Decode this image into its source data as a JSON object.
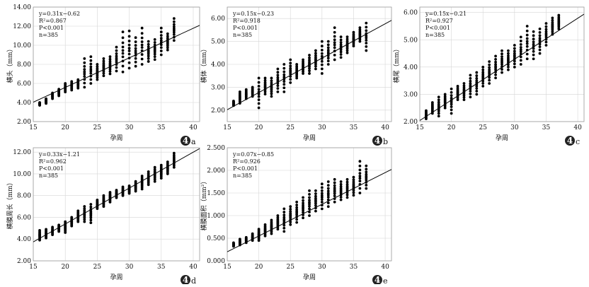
{
  "chart_data": [
    {
      "id": "a",
      "type": "scatter",
      "panel_label": "4",
      "panel_letter": "a",
      "xlabel": "孕周",
      "ylabel": "横头（mm）",
      "xlim": [
        15,
        41
      ],
      "ylim": [
        2.0,
        14.0
      ],
      "xticks": [
        "15",
        "20",
        "25",
        "30",
        "35",
        "40"
      ],
      "yticks": [
        "2.00",
        "4.00",
        "6.00",
        "8.00",
        "10.00",
        "12.00",
        "14.00"
      ],
      "stats": [
        "y=0.31x−0.62",
        "R²=0.867",
        "P<0.001",
        "n=385"
      ],
      "fit": {
        "slope": 0.31,
        "intercept": -0.62
      },
      "point_ranges": [
        [
          16,
          3.7,
          4.0
        ],
        [
          17,
          3.9,
          4.4
        ],
        [
          18,
          4.4,
          5.0
        ],
        [
          19,
          4.7,
          5.4
        ],
        [
          20,
          5.1,
          6.0
        ],
        [
          21,
          5.3,
          6.2
        ],
        [
          22,
          5.5,
          6.4
        ],
        [
          23,
          5.6,
          8.6
        ],
        [
          24,
          6.0,
          8.8
        ],
        [
          25,
          6.4,
          8.0
        ],
        [
          26,
          6.8,
          8.6
        ],
        [
          27,
          7.0,
          8.8
        ],
        [
          28,
          7.3,
          9.8
        ],
        [
          29,
          7.2,
          11.4
        ],
        [
          30,
          7.6,
          11.5
        ],
        [
          31,
          7.8,
          10.8
        ],
        [
          32,
          8.0,
          11.8
        ],
        [
          33,
          8.3,
          10.4
        ],
        [
          34,
          8.5,
          10.6
        ],
        [
          35,
          9.0,
          11.8
        ],
        [
          36,
          9.5,
          11.2
        ],
        [
          37,
          10.5,
          12.8
        ]
      ]
    },
    {
      "id": "b",
      "type": "scatter",
      "panel_label": "4",
      "panel_letter": "b",
      "xlabel": "孕周",
      "ylabel": "横体（mm）",
      "xlim": [
        15,
        41
      ],
      "ylim": [
        1.5,
        6.5
      ],
      "xticks": [
        "15",
        "20",
        "25",
        "30",
        "35",
        "40"
      ],
      "yticks": [
        "2.00",
        "3.00",
        "4.00",
        "5.00",
        "6.00"
      ],
      "stats": [
        "y=0.15x−0.23",
        "R²=0.918",
        "P<0.001",
        "n=385"
      ],
      "fit": {
        "slope": 0.15,
        "intercept": -0.23
      },
      "point_ranges": [
        [
          16,
          2.2,
          2.4
        ],
        [
          17,
          2.3,
          2.8
        ],
        [
          18,
          2.5,
          2.9
        ],
        [
          19,
          2.6,
          3.0
        ],
        [
          20,
          2.1,
          3.4
        ],
        [
          21,
          2.7,
          3.4
        ],
        [
          22,
          2.6,
          3.4
        ],
        [
          23,
          2.8,
          3.8
        ],
        [
          24,
          2.8,
          4.0
        ],
        [
          25,
          3.2,
          4.2
        ],
        [
          26,
          3.4,
          4.0
        ],
        [
          27,
          3.6,
          4.2
        ],
        [
          28,
          3.6,
          4.4
        ],
        [
          29,
          3.8,
          4.6
        ],
        [
          30,
          3.6,
          5.0
        ],
        [
          31,
          4.0,
          5.0
        ],
        [
          32,
          4.2,
          5.6
        ],
        [
          33,
          4.3,
          5.2
        ],
        [
          34,
          4.5,
          5.2
        ],
        [
          35,
          4.8,
          5.4
        ],
        [
          36,
          5.0,
          5.6
        ],
        [
          37,
          4.6,
          5.8
        ]
      ]
    },
    {
      "id": "c",
      "type": "scatter",
      "panel_label": "4",
      "panel_letter": "c",
      "xlabel": "孕周",
      "ylabel": "横尾（mm）",
      "xlim": [
        15,
        41
      ],
      "ylim": [
        2.0,
        6.2
      ],
      "xticks": [
        "15",
        "20",
        "25",
        "30",
        "35",
        "40"
      ],
      "yticks": [
        "2.00",
        "3.00",
        "4.00",
        "5.00",
        "6.00"
      ],
      "stats": [
        "y=0.15x−0.21",
        "R²=0.927",
        "P<0.001",
        "n=385"
      ],
      "fit": {
        "slope": 0.15,
        "intercept": -0.21
      },
      "point_ranges": [
        [
          16,
          2.1,
          2.4
        ],
        [
          17,
          2.3,
          2.7
        ],
        [
          18,
          2.2,
          2.9
        ],
        [
          19,
          2.5,
          3.0
        ],
        [
          20,
          2.3,
          3.2
        ],
        [
          21,
          2.8,
          3.3
        ],
        [
          22,
          2.8,
          3.4
        ],
        [
          23,
          2.9,
          3.7
        ],
        [
          24,
          3.0,
          3.8
        ],
        [
          25,
          3.3,
          4.0
        ],
        [
          26,
          3.4,
          4.2
        ],
        [
          27,
          3.6,
          4.4
        ],
        [
          28,
          3.8,
          4.6
        ],
        [
          29,
          3.9,
          4.6
        ],
        [
          30,
          4.0,
          4.8
        ],
        [
          31,
          4.1,
          5.1
        ],
        [
          32,
          4.3,
          5.5
        ],
        [
          33,
          4.3,
          5.3
        ],
        [
          34,
          4.5,
          5.4
        ],
        [
          35,
          4.8,
          5.6
        ],
        [
          36,
          5.2,
          5.8
        ],
        [
          37,
          5.4,
          5.9
        ]
      ]
    },
    {
      "id": "d",
      "type": "scatter",
      "panel_label": "4",
      "panel_letter": "d",
      "xlabel": "孕周",
      "ylabel": "横膜周长（mm）",
      "xlim": [
        15,
        41
      ],
      "ylim": [
        2.0,
        12.4
      ],
      "xticks": [
        "15",
        "20",
        "25",
        "30",
        "35",
        "40"
      ],
      "yticks": [
        "2.00",
        "4.00",
        "6.00",
        "8.00",
        "10.00",
        "12.00"
      ],
      "stats": [
        "y=0.33x−1.21",
        "R²=0.962",
        "P<0.001",
        "n=385"
      ],
      "fit": {
        "slope": 0.33,
        "intercept": -1.21
      },
      "point_ranges": [
        [
          16,
          3.9,
          4.8
        ],
        [
          17,
          4.1,
          4.9
        ],
        [
          18,
          4.4,
          5.1
        ],
        [
          19,
          4.7,
          5.3
        ],
        [
          20,
          4.6,
          5.6
        ],
        [
          21,
          5.2,
          6.0
        ],
        [
          22,
          5.6,
          6.6
        ],
        [
          23,
          5.6,
          7.0
        ],
        [
          24,
          5.5,
          7.2
        ],
        [
          25,
          6.8,
          7.6
        ],
        [
          26,
          7.0,
          8.0
        ],
        [
          27,
          7.4,
          8.3
        ],
        [
          28,
          7.8,
          8.5
        ],
        [
          29,
          8.0,
          8.8
        ],
        [
          30,
          8.2,
          8.9
        ],
        [
          31,
          8.4,
          9.3
        ],
        [
          32,
          8.6,
          9.8
        ],
        [
          33,
          9.0,
          10.2
        ],
        [
          34,
          9.3,
          10.6
        ],
        [
          35,
          9.6,
          10.8
        ],
        [
          36,
          10.0,
          11.1
        ],
        [
          37,
          10.6,
          11.9
        ]
      ]
    },
    {
      "id": "e",
      "type": "scatter",
      "panel_label": "4",
      "panel_letter": "e",
      "xlabel": "孕周",
      "ylabel": "横膜面积（mm²）",
      "xlim": [
        15,
        41
      ],
      "ylim": [
        0.0,
        2.5
      ],
      "xticks": [
        "15",
        "20",
        "25",
        "30",
        "35",
        "40"
      ],
      "yticks": [
        "0.000",
        "0.500",
        "1.000",
        "1.500",
        "2.000",
        "2.500"
      ],
      "stats": [
        "y=0.07x−0.85",
        "R²=0.926",
        "P<0.001",
        "n=385"
      ],
      "fit": {
        "slope": 0.07,
        "intercept": -0.85
      },
      "point_ranges": [
        [
          16,
          0.32,
          0.4
        ],
        [
          17,
          0.35,
          0.48
        ],
        [
          18,
          0.4,
          0.52
        ],
        [
          19,
          0.45,
          0.6
        ],
        [
          20,
          0.45,
          0.7
        ],
        [
          21,
          0.55,
          0.8
        ],
        [
          22,
          0.6,
          0.9
        ],
        [
          23,
          0.7,
          1.0
        ],
        [
          24,
          0.65,
          1.15
        ],
        [
          25,
          0.8,
          1.2
        ],
        [
          26,
          0.85,
          1.3
        ],
        [
          27,
          0.95,
          1.4
        ],
        [
          28,
          1.0,
          1.55
        ],
        [
          29,
          1.1,
          1.55
        ],
        [
          30,
          1.15,
          1.7
        ],
        [
          31,
          1.2,
          1.75
        ],
        [
          32,
          1.3,
          1.8
        ],
        [
          33,
          1.35,
          1.75
        ],
        [
          34,
          1.4,
          1.8
        ],
        [
          35,
          1.45,
          1.85
        ],
        [
          36,
          1.5,
          2.2
        ],
        [
          37,
          1.6,
          2.1
        ]
      ]
    }
  ]
}
